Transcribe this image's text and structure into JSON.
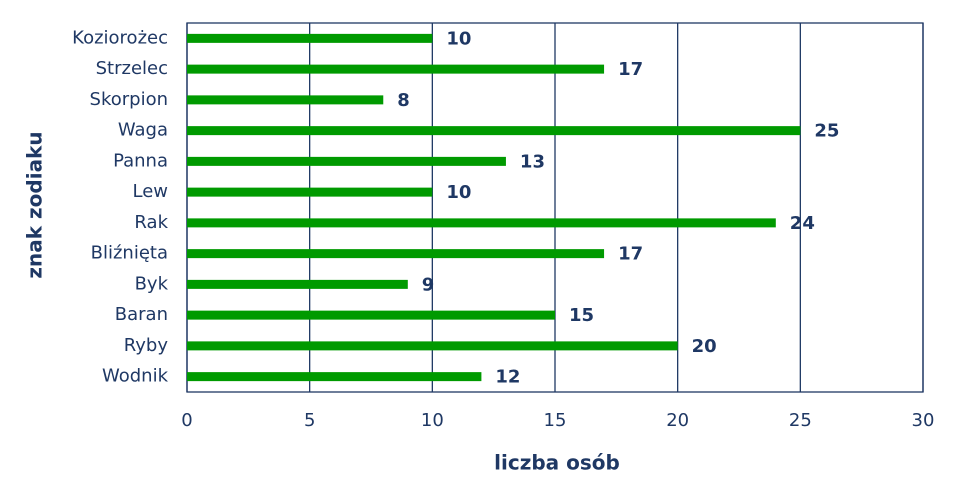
{
  "chart_data": {
    "type": "bar",
    "orientation": "horizontal",
    "categories": [
      "Koziorożec",
      "Strzelec",
      "Skorpion",
      "Waga",
      "Panna",
      "Lew",
      "Rak",
      "Bliźnięta",
      "Byk",
      "Baran",
      "Ryby",
      "Wodnik"
    ],
    "values": [
      10,
      17,
      8,
      25,
      13,
      10,
      24,
      17,
      9,
      15,
      20,
      12
    ],
    "color": "#009a00",
    "xlim": [
      0,
      30
    ],
    "xticks": [
      0,
      5,
      10,
      15,
      20,
      25,
      30
    ],
    "grid": true,
    "xlabel": "liczba osób",
    "ylabel": "znak zodiaku"
  }
}
